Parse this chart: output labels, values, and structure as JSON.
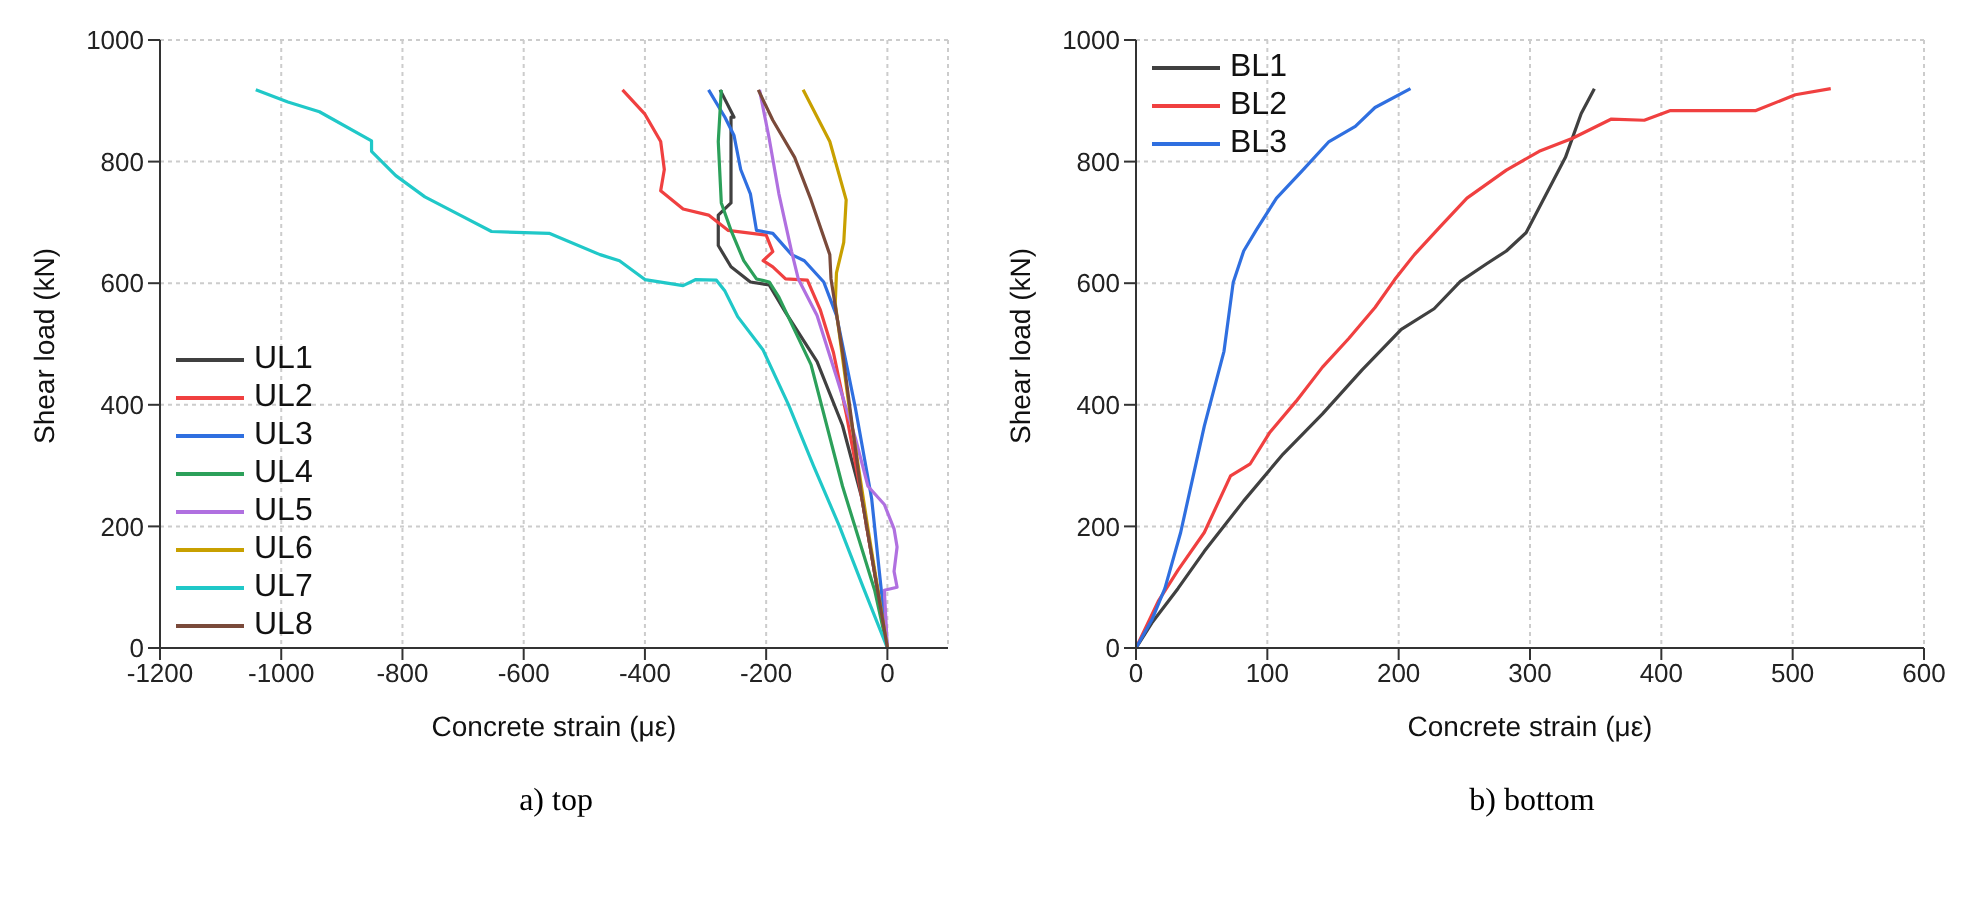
{
  "chart_data": [
    {
      "type": "line",
      "xlabel": "Concrete strain (με)",
      "ylabel": "Shear load (kN)",
      "annotations": [
        "a) top"
      ],
      "xlim": [
        -1200,
        100
      ],
      "xticks": [
        -1200,
        -1000,
        -800,
        -600,
        -400,
        -200,
        0
      ],
      "ylim": [
        0,
        1000
      ],
      "yticks": [
        0,
        200,
        400,
        600,
        800,
        1000
      ],
      "grid": true,
      "legend": "bottom left",
      "line_style": "solid",
      "marker": "none",
      "series": [
        {
          "name": "UL1",
          "color": "#404040",
          "x": [
            0,
            -42,
            -74,
            -116,
            -168,
            -195,
            -226,
            -258,
            -279,
            -279,
            -258,
            -258,
            -258,
            -253,
            -276
          ],
          "values": [
            0,
            246,
            366,
            471,
            552,
            597,
            602,
            627,
            662,
            712,
            732,
            782,
            873,
            873,
            918
          ]
        },
        {
          "name": "UL2",
          "color": "#f04040",
          "x": [
            0,
            -42,
            -68,
            -89,
            -111,
            -132,
            -168,
            -189,
            -205,
            -189,
            -200,
            -263,
            -295,
            -337,
            -374,
            -368,
            -374,
            -400,
            -437
          ],
          "values": [
            0,
            246,
            386,
            486,
            557,
            605,
            607,
            627,
            637,
            652,
            679,
            687,
            712,
            722,
            752,
            787,
            833,
            878,
            918
          ]
        },
        {
          "name": "UL3",
          "color": "#2f6fe0",
          "x": [
            0,
            -26,
            -53,
            -84,
            -105,
            -137,
            -158,
            -189,
            -216,
            -226,
            -242,
            -253,
            -268,
            -295
          ],
          "values": [
            0,
            246,
            396,
            547,
            602,
            637,
            647,
            682,
            687,
            747,
            787,
            843,
            873,
            918
          ]
        },
        {
          "name": "UL4",
          "color": "#2ca05a",
          "x": [
            0,
            -21,
            -74,
            -126,
            -179,
            -195,
            -216,
            -237,
            -258,
            -274,
            -279,
            -274
          ],
          "values": [
            0,
            95,
            266,
            466,
            577,
            602,
            607,
            637,
            687,
            732,
            833,
            918
          ]
        },
        {
          "name": "UL5",
          "color": "#b070e0",
          "x": [
            0,
            -5,
            16,
            11,
            16,
            11,
            -5,
            -32,
            -53,
            -84,
            -116,
            -147,
            -158,
            -179,
            -195,
            -211
          ],
          "values": [
            0,
            95,
            100,
            126,
            166,
            196,
            236,
            266,
            346,
            446,
            547,
            607,
            652,
            747,
            838,
            918
          ]
        },
        {
          "name": "UL6",
          "color": "#c8a000",
          "x": [
            0,
            -32,
            -63,
            -86,
            -84,
            -72,
            -68,
            -95,
            -139
          ],
          "values": [
            0,
            196,
            396,
            567,
            617,
            667,
            737,
            833,
            918
          ]
        },
        {
          "name": "UL7",
          "color": "#20c8c8",
          "x": [
            0,
            -40,
            -79,
            -122,
            -163,
            -205,
            -247,
            -268,
            -282,
            -316,
            -337,
            -400,
            -442,
            -474,
            -558,
            -653,
            -705,
            -763,
            -811,
            -851,
            -851,
            -937,
            -989,
            -1042
          ],
          "values": [
            0,
            100,
            200,
            300,
            400,
            490,
            545,
            587,
            605,
            606,
            596,
            606,
            637,
            647,
            682,
            685,
            712,
            742,
            777,
            817,
            834,
            882,
            898,
            918
          ]
        },
        {
          "name": "UL8",
          "color": "#7a4a3a",
          "x": [
            0,
            -42,
            -74,
            -93,
            -95,
            -126,
            -153,
            -189,
            -213
          ],
          "values": [
            0,
            246,
            487,
            607,
            647,
            737,
            807,
            868,
            918
          ]
        }
      ]
    },
    {
      "type": "line",
      "xlabel": "Concrete strain (με)",
      "ylabel": "Shear load (kN)",
      "annotations": [
        "b) bottom"
      ],
      "xlim": [
        0,
        600
      ],
      "xticks": [
        0,
        100,
        200,
        300,
        400,
        500,
        600
      ],
      "ylim": [
        0,
        1000
      ],
      "yticks": [
        0,
        200,
        400,
        600,
        800,
        1000
      ],
      "grid": true,
      "legend": "top left",
      "line_style": "solid",
      "marker": "none",
      "series": [
        {
          "name": "BL1",
          "color": "#404040",
          "x": [
            0,
            12,
            32,
            52,
            82,
            112,
            142,
            172,
            202,
            227,
            247,
            267,
            282,
            297,
            312,
            327,
            339,
            349
          ],
          "values": [
            0,
            41,
            98,
            159,
            242,
            319,
            385,
            457,
            524,
            558,
            603,
            632,
            653,
            683,
            745,
            807,
            879,
            920
          ]
        },
        {
          "name": "BL2",
          "color": "#f04040",
          "x": [
            0,
            17,
            32,
            52,
            72,
            87,
            102,
            122,
            142,
            162,
            182,
            197,
            212,
            232,
            252,
            282,
            307,
            332,
            362,
            387,
            407,
            472,
            502,
            529
          ],
          "values": [
            0,
            77,
            128,
            190,
            283,
            303,
            355,
            406,
            462,
            509,
            560,
            606,
            647,
            694,
            740,
            786,
            817,
            838,
            870,
            868,
            884,
            884,
            910,
            920
          ]
        },
        {
          "name": "BL3",
          "color": "#2f6fe0",
          "x": [
            0,
            12,
            22,
            34,
            52,
            67,
            74,
            82,
            92,
            107,
            127,
            147,
            167,
            182,
            209
          ],
          "values": [
            0,
            46,
            98,
            190,
            365,
            488,
            601,
            653,
            689,
            740,
            786,
            833,
            858,
            889,
            920
          ]
        }
      ]
    }
  ]
}
